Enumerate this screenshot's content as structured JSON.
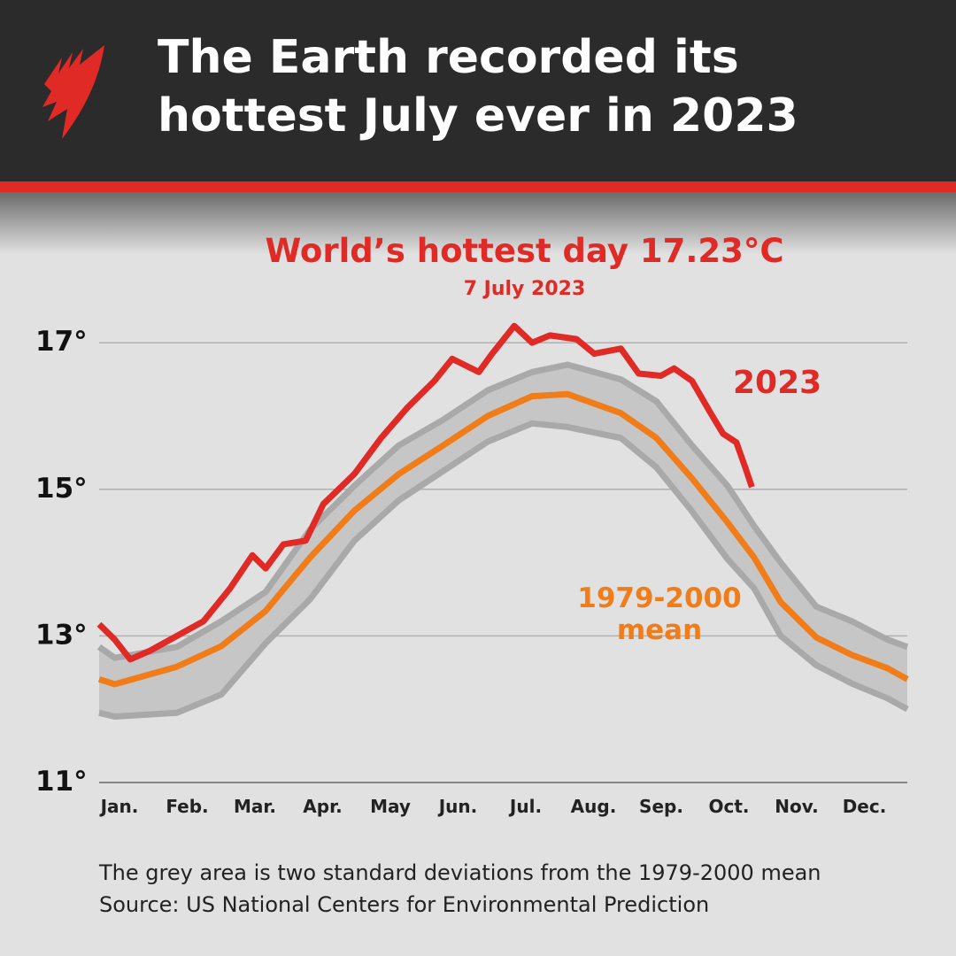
{
  "header": {
    "title_line1": "The Earth recorded its",
    "title_line2": "hottest July ever in 2023",
    "logo": "SBS logo"
  },
  "annotation": {
    "headline": "World’s hottest day 17.23°C",
    "date": "7 July 2023"
  },
  "footer": {
    "note": "The grey area is two standard deviations from the 1979-2000 mean",
    "source": "Source: US National Centers for Environmental Prediction"
  },
  "chart_data": {
    "type": "line",
    "title": "",
    "xlabel": "",
    "ylabel": "",
    "ylim": [
      11,
      17.6
    ],
    "xlim": [
      1,
      365
    ],
    "grid": "horizontal",
    "yticks": [
      {
        "value": 11,
        "label": "11°"
      },
      {
        "value": 13,
        "label": "13°"
      },
      {
        "value": 15,
        "label": "15°"
      },
      {
        "value": 17,
        "label": "17°"
      }
    ],
    "month_labels": [
      "Jan.",
      "Feb.",
      "Mar.",
      "Apr.",
      "May",
      "Jun.",
      "Jul.",
      "Aug.",
      "Sep.",
      "Oct.",
      "Nov.",
      "Dec."
    ],
    "colors": {
      "year2023": "#e02a26",
      "mean": "#f07d1a",
      "band_fill": "#c6c6c6",
      "band_edge": "#a9a9a9"
    },
    "band": {
      "x": [
        1,
        8,
        36,
        56,
        76,
        96,
        116,
        136,
        156,
        176,
        196,
        212,
        236,
        252,
        268,
        284,
        296,
        308,
        324,
        340,
        356,
        365
      ],
      "upper": [
        12.85,
        12.7,
        12.85,
        13.2,
        13.6,
        14.45,
        15.05,
        15.6,
        15.95,
        16.35,
        16.6,
        16.7,
        16.5,
        16.2,
        15.6,
        15.05,
        14.5,
        14.0,
        13.4,
        13.2,
        12.95,
        12.85
      ],
      "lower": [
        11.95,
        11.9,
        11.95,
        12.2,
        12.9,
        13.5,
        14.3,
        14.85,
        15.25,
        15.65,
        15.9,
        15.85,
        15.7,
        15.3,
        14.7,
        14.05,
        13.65,
        13.0,
        12.6,
        12.35,
        12.15,
        12.0
      ]
    },
    "series": [
      {
        "name": "1979-2000 mean",
        "label_line1": "1979-2000",
        "label_line2": "mean",
        "x": [
          1,
          8,
          36,
          56,
          76,
          96,
          116,
          136,
          156,
          176,
          196,
          212,
          236,
          252,
          268,
          284,
          296,
          308,
          324,
          340,
          356,
          365
        ],
        "y": [
          12.41,
          12.34,
          12.58,
          12.86,
          13.34,
          14.07,
          14.71,
          15.21,
          15.6,
          16.0,
          16.27,
          16.3,
          16.04,
          15.7,
          15.15,
          14.55,
          14.07,
          13.46,
          12.98,
          12.74,
          12.56,
          12.41
        ]
      },
      {
        "name": "2023",
        "x": [
          1,
          8,
          15,
          24,
          36,
          48,
          60,
          70,
          76,
          84,
          94,
          102,
          116,
          128,
          140,
          152,
          160,
          172,
          178,
          188,
          196,
          204,
          216,
          224,
          236,
          244,
          254,
          260,
          268,
          276,
          282,
          288,
          292,
          295
        ],
        "y": [
          13.16,
          12.95,
          12.68,
          12.8,
          13.0,
          13.2,
          13.65,
          14.1,
          13.92,
          14.25,
          14.3,
          14.8,
          15.21,
          15.7,
          16.12,
          16.48,
          16.78,
          16.6,
          16.85,
          17.23,
          17.0,
          17.1,
          17.05,
          16.85,
          16.92,
          16.58,
          16.55,
          16.65,
          16.48,
          16.06,
          15.76,
          15.64,
          15.3,
          15.03
        ]
      }
    ]
  }
}
